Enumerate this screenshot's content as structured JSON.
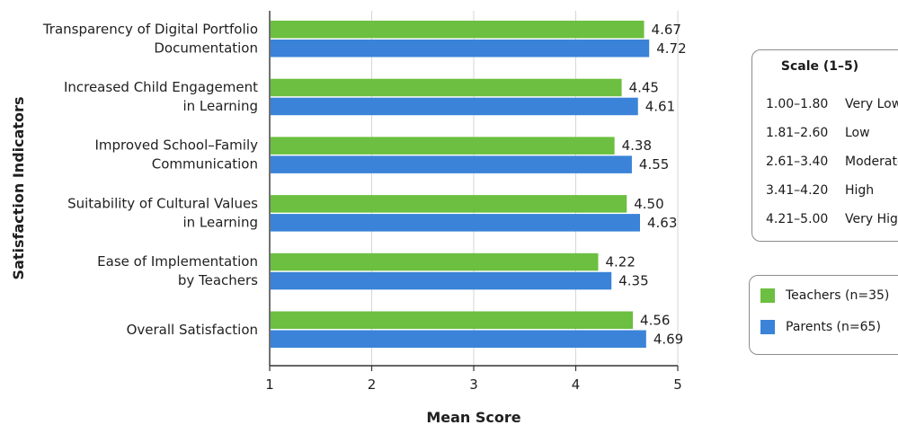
{
  "chart_data": {
    "type": "bar",
    "orientation": "horizontal",
    "categories": [
      [
        "Transparency of Digital Portfolio",
        "Documentation"
      ],
      [
        "Increased Child Engagement",
        "in Learning"
      ],
      [
        "Improved School–Family",
        "Communication"
      ],
      [
        "Suitability of Cultural Values",
        "in Learning"
      ],
      [
        "Ease of Implementation",
        "by Teachers"
      ],
      [
        "Overall Satisfaction"
      ]
    ],
    "series": [
      {
        "name": "Teachers (n=35)",
        "color": "#6cbf40",
        "values": [
          4.67,
          4.45,
          4.38,
          4.5,
          4.22,
          4.56
        ],
        "labels": [
          "4.67",
          "4.45",
          "4.38",
          "4.50",
          "4.22",
          "4.56"
        ]
      },
      {
        "name": "Parents (n=65)",
        "color": "#3a83d8",
        "values": [
          4.72,
          4.61,
          4.55,
          4.63,
          4.35,
          4.69
        ],
        "labels": [
          "4.72",
          "4.61",
          "4.55",
          "4.63",
          "4.35",
          "4.69"
        ]
      }
    ],
    "xlabel": "Mean Score",
    "ylabel": "Satisfaction Indicators",
    "xlim": [
      1,
      5
    ],
    "xticks": [
      "1",
      "2",
      "3",
      "4",
      "5"
    ],
    "grid": true,
    "legend_position": "right"
  },
  "scale_legend": {
    "title": "Scale (1–5)",
    "rows": [
      {
        "range": "1.00–1.80",
        "label": "Very Low"
      },
      {
        "range": "1.81–2.60",
        "label": "Low"
      },
      {
        "range": "2.61–3.40",
        "label": "Moderate"
      },
      {
        "range": "3.41–4.20",
        "label": "High"
      },
      {
        "range": "4.21–5.00",
        "label": "Very High"
      }
    ]
  },
  "series_legend": [
    {
      "label": "Teachers (n=35)",
      "color": "#6cbf40"
    },
    {
      "label": "Parents (n=65)",
      "color": "#3a83d8"
    }
  ]
}
